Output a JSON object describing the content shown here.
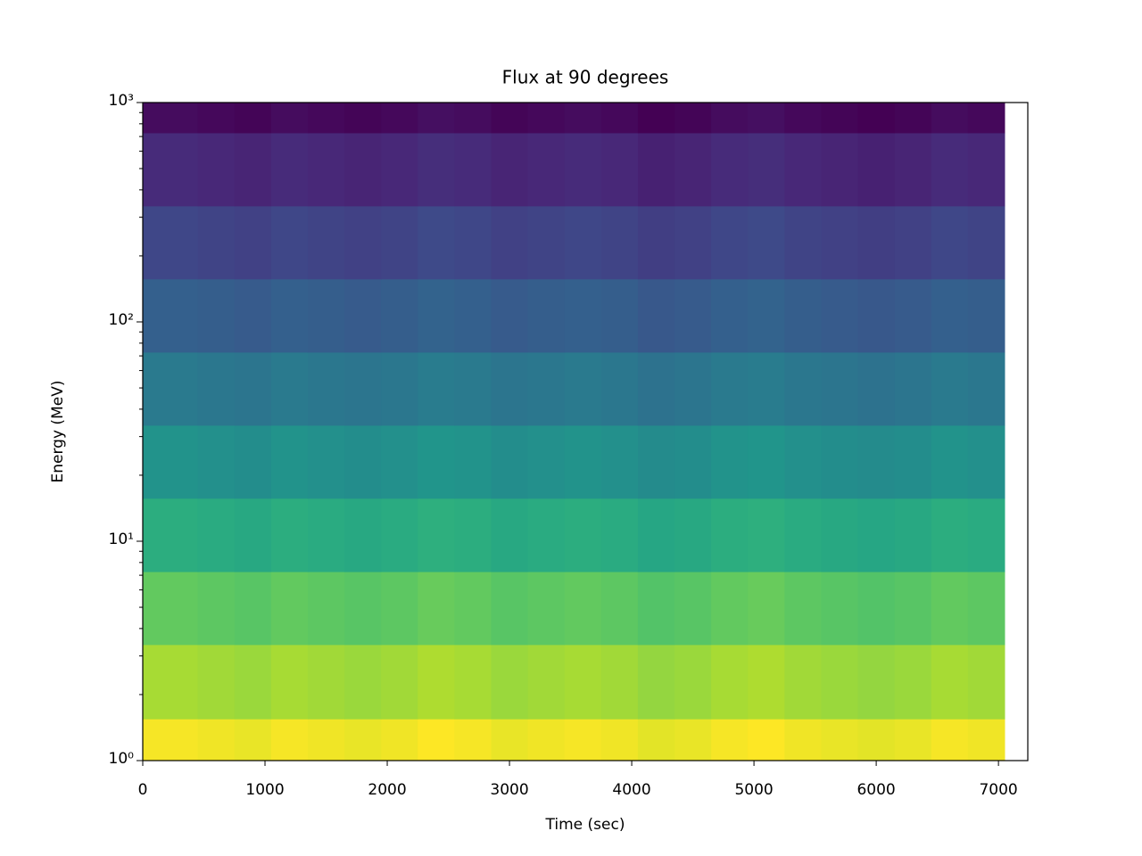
{
  "chart_data": {
    "type": "heatmap",
    "title": "Flux at 90 degrees",
    "xlabel": "Time (sec)",
    "ylabel": "Energy (MeV)",
    "colormap": "viridis",
    "xbins": [
      0,
      450,
      750,
      1050,
      1350,
      1650,
      1950,
      2250,
      2550,
      2850,
      3150,
      3450,
      3750,
      4050,
      4350,
      4650,
      4950,
      5250,
      5550,
      5850,
      6150,
      6450,
      6750,
      7050
    ],
    "ybins": [
      1,
      1.55,
      3.38,
      7.27,
      15.7,
      33.8,
      72.8,
      157,
      338,
      728,
      1000
    ],
    "z": [
      [
        0.98,
        0.97,
        0.96,
        0.98,
        0.97,
        0.96,
        0.97,
        0.99,
        0.98,
        0.96,
        0.97,
        0.98,
        0.97,
        0.95,
        0.96,
        0.98,
        0.99,
        0.97,
        0.96,
        0.95,
        0.96,
        0.98,
        0.97
      ],
      [
        0.86,
        0.85,
        0.84,
        0.86,
        0.85,
        0.84,
        0.85,
        0.87,
        0.86,
        0.84,
        0.85,
        0.86,
        0.85,
        0.83,
        0.84,
        0.86,
        0.87,
        0.85,
        0.84,
        0.83,
        0.84,
        0.86,
        0.85
      ],
      [
        0.75,
        0.74,
        0.73,
        0.75,
        0.74,
        0.73,
        0.74,
        0.76,
        0.75,
        0.73,
        0.74,
        0.75,
        0.74,
        0.72,
        0.73,
        0.75,
        0.76,
        0.74,
        0.73,
        0.72,
        0.73,
        0.75,
        0.74
      ],
      [
        0.62,
        0.61,
        0.6,
        0.62,
        0.61,
        0.6,
        0.61,
        0.63,
        0.62,
        0.6,
        0.61,
        0.62,
        0.61,
        0.59,
        0.6,
        0.62,
        0.63,
        0.61,
        0.6,
        0.59,
        0.6,
        0.62,
        0.61
      ],
      [
        0.51,
        0.5,
        0.49,
        0.51,
        0.5,
        0.49,
        0.5,
        0.52,
        0.51,
        0.49,
        0.5,
        0.51,
        0.5,
        0.48,
        0.49,
        0.51,
        0.52,
        0.5,
        0.49,
        0.48,
        0.49,
        0.51,
        0.5
      ],
      [
        0.41,
        0.4,
        0.39,
        0.41,
        0.4,
        0.39,
        0.4,
        0.42,
        0.41,
        0.39,
        0.4,
        0.41,
        0.4,
        0.38,
        0.39,
        0.41,
        0.42,
        0.4,
        0.39,
        0.38,
        0.39,
        0.41,
        0.4
      ],
      [
        0.31,
        0.3,
        0.29,
        0.31,
        0.3,
        0.29,
        0.3,
        0.32,
        0.31,
        0.29,
        0.3,
        0.31,
        0.3,
        0.28,
        0.29,
        0.31,
        0.32,
        0.3,
        0.29,
        0.28,
        0.29,
        0.31,
        0.3
      ],
      [
        0.22,
        0.21,
        0.2,
        0.22,
        0.21,
        0.2,
        0.21,
        0.23,
        0.22,
        0.2,
        0.21,
        0.22,
        0.21,
        0.19,
        0.2,
        0.22,
        0.23,
        0.21,
        0.2,
        0.19,
        0.2,
        0.22,
        0.21
      ],
      [
        0.13,
        0.12,
        0.11,
        0.13,
        0.12,
        0.11,
        0.12,
        0.14,
        0.13,
        0.11,
        0.12,
        0.13,
        0.12,
        0.1,
        0.11,
        0.13,
        0.14,
        0.12,
        0.11,
        0.1,
        0.11,
        0.13,
        0.12
      ],
      [
        0.04,
        0.03,
        0.02,
        0.04,
        0.03,
        0.02,
        0.03,
        0.05,
        0.04,
        0.02,
        0.03,
        0.04,
        0.03,
        0.01,
        0.02,
        0.04,
        0.05,
        0.03,
        0.02,
        0.01,
        0.02,
        0.04,
        0.03
      ]
    ],
    "xlim": [
      0,
      7240
    ],
    "xticks": [
      0,
      1000,
      2000,
      3000,
      4000,
      5000,
      6000,
      7000
    ],
    "ylim": [
      1,
      1000
    ],
    "yscale": "log",
    "yticks": [
      {
        "value": 1,
        "label": "10⁰"
      },
      {
        "value": 10,
        "label": "10¹"
      },
      {
        "value": 100,
        "label": "10²"
      },
      {
        "value": 1000,
        "label": "10³"
      }
    ],
    "yminorticks": [
      2,
      3,
      4,
      5,
      6,
      7,
      8,
      9,
      20,
      30,
      40,
      50,
      60,
      70,
      80,
      90,
      200,
      300,
      400,
      500,
      600,
      700,
      800,
      900
    ]
  }
}
